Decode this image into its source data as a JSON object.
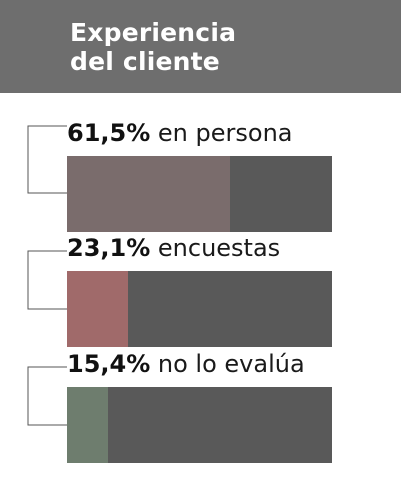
{
  "header": {
    "title_line1": "Experiencia",
    "title_line2": "del cliente"
  },
  "colors": {
    "header_bg": "#6e6e6e",
    "track": "#595959",
    "fill_persona": "#7a6c6c",
    "fill_encuestas": "#a06a6a",
    "fill_no_evalua": "#6e7d6e"
  },
  "chart_data": {
    "type": "bar",
    "categories": [
      "en persona",
      "encuestas",
      "no lo evalúa"
    ],
    "values": [
      61.5,
      23.1,
      15.4
    ],
    "value_labels": [
      "61,5%",
      "23,1%",
      "15,4%"
    ],
    "unit": "%",
    "title": "Experiencia del cliente",
    "xlim": [
      0,
      100
    ]
  }
}
